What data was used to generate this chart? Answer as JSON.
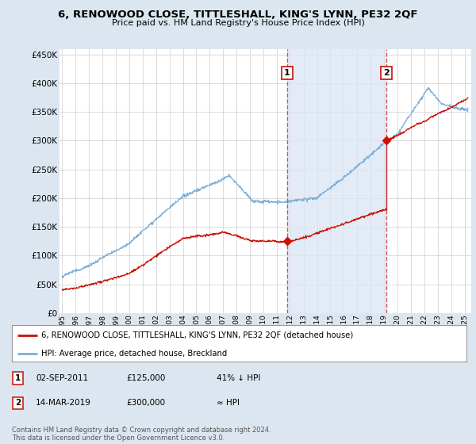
{
  "title": "6, RENOWOOD CLOSE, TITTLESHALL, KING'S LYNN, PE32 2QF",
  "subtitle": "Price paid vs. HM Land Registry's House Price Index (HPI)",
  "bg_color": "#dce6f0",
  "plot_bg_color": "#ffffff",
  "grid_color": "#cccccc",
  "shade_color": "#dce6f5",
  "sale1_date_num": 2011.75,
  "sale1_price": 125000,
  "sale1_label": "1",
  "sale2_date_num": 2019.18,
  "sale2_price": 300000,
  "sale2_label": "2",
  "legend_entries": [
    "6, RENOWOOD CLOSE, TITTLESHALL, KING'S LYNN, PE32 2QF (detached house)",
    "HPI: Average price, detached house, Breckland"
  ],
  "footer": "Contains HM Land Registry data © Crown copyright and database right 2024.\nThis data is licensed under the Open Government Licence v3.0.",
  "ylim": [
    0,
    460000
  ],
  "xlim_start": 1994.8,
  "xlim_end": 2025.5,
  "yticks": [
    0,
    50000,
    100000,
    150000,
    200000,
    250000,
    300000,
    350000,
    400000,
    450000
  ],
  "xticks": [
    1995,
    1996,
    1997,
    1998,
    1999,
    2000,
    2001,
    2002,
    2003,
    2004,
    2005,
    2006,
    2007,
    2008,
    2009,
    2010,
    2011,
    2012,
    2013,
    2014,
    2015,
    2016,
    2017,
    2018,
    2019,
    2020,
    2021,
    2022,
    2023,
    2024,
    2025
  ],
  "hpi_color": "#7aaed6",
  "sale_color": "#cc1100",
  "dashed_color": "#cc4444"
}
